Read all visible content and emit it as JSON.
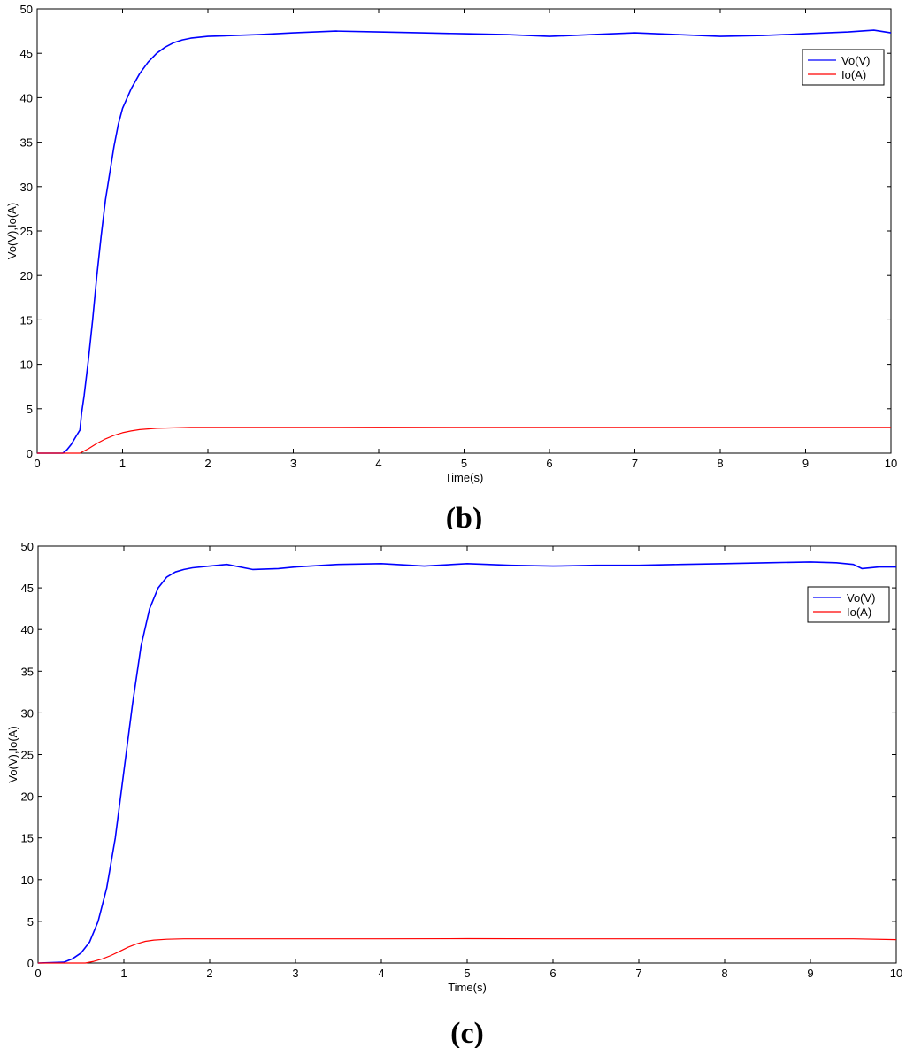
{
  "chart_data": [
    {
      "type": "line",
      "panel_label": "b",
      "xlabel": "Time(s)",
      "ylabel": "Vo(V),Io(A)",
      "xlim": [
        0,
        10
      ],
      "ylim": [
        0,
        50
      ],
      "xticks": [
        0,
        1,
        2,
        3,
        4,
        5,
        6,
        7,
        8,
        9,
        10
      ],
      "yticks": [
        0,
        5,
        10,
        15,
        20,
        25,
        30,
        35,
        40,
        45,
        50
      ],
      "grid": false,
      "legend": "top-right",
      "series": [
        {
          "name": "Vo(V)",
          "color": "#0000ff",
          "x": [
            0,
            0.3,
            0.35,
            0.4,
            0.45,
            0.5,
            0.52,
            0.55,
            0.6,
            0.65,
            0.7,
            0.75,
            0.8,
            0.85,
            0.9,
            0.95,
            1.0,
            1.1,
            1.2,
            1.3,
            1.4,
            1.5,
            1.6,
            1.7,
            1.8,
            1.9,
            2.0,
            2.3,
            2.6,
            3.0,
            3.5,
            4.0,
            4.5,
            5.0,
            5.5,
            6.0,
            6.5,
            7.0,
            7.5,
            8.0,
            8.5,
            9.0,
            9.5,
            9.8,
            10.0
          ],
          "values": [
            0,
            0,
            0.4,
            1.0,
            1.8,
            2.6,
            4.5,
            6.5,
            10.5,
            15.0,
            20.0,
            24.5,
            28.5,
            31.5,
            34.5,
            37.0,
            38.8,
            41.0,
            42.7,
            44.0,
            45.0,
            45.7,
            46.2,
            46.5,
            46.7,
            46.8,
            46.9,
            47.0,
            47.1,
            47.3,
            47.5,
            47.4,
            47.3,
            47.2,
            47.1,
            46.9,
            47.1,
            47.3,
            47.1,
            46.9,
            47.0,
            47.2,
            47.4,
            47.6,
            47.3
          ]
        },
        {
          "name": "Io(A)",
          "color": "#ff0000",
          "x": [
            0,
            0.5,
            0.6,
            0.7,
            0.8,
            0.9,
            1.0,
            1.1,
            1.2,
            1.4,
            1.6,
            1.8,
            2.0,
            3.0,
            4.0,
            5.0,
            6.0,
            7.0,
            8.0,
            9.0,
            10.0
          ],
          "values": [
            0,
            0,
            0.5,
            1.1,
            1.6,
            2.0,
            2.3,
            2.5,
            2.65,
            2.8,
            2.85,
            2.9,
            2.9,
            2.9,
            2.92,
            2.9,
            2.9,
            2.9,
            2.9,
            2.9,
            2.9
          ]
        }
      ]
    },
    {
      "type": "line",
      "panel_label": "c",
      "xlabel": "Time(s)",
      "ylabel": "Vo(V),Io(A)",
      "xlim": [
        0,
        10
      ],
      "ylim": [
        0,
        50
      ],
      "xticks": [
        0,
        1,
        2,
        3,
        4,
        5,
        6,
        7,
        8,
        9,
        10
      ],
      "yticks": [
        0,
        5,
        10,
        15,
        20,
        25,
        30,
        35,
        40,
        45,
        50
      ],
      "grid": false,
      "legend": "top-right",
      "series": [
        {
          "name": "Vo(V)",
          "color": "#0000ff",
          "x": [
            0,
            0.3,
            0.4,
            0.5,
            0.6,
            0.7,
            0.8,
            0.9,
            1.0,
            1.1,
            1.2,
            1.3,
            1.4,
            1.5,
            1.6,
            1.7,
            1.8,
            2.0,
            2.2,
            2.5,
            2.8,
            3.0,
            3.5,
            4.0,
            4.5,
            5.0,
            5.5,
            6.0,
            6.5,
            7.0,
            7.5,
            8.0,
            8.5,
            9.0,
            9.3,
            9.5,
            9.6,
            9.8,
            10.0
          ],
          "values": [
            0,
            0.1,
            0.5,
            1.2,
            2.5,
            5.0,
            9.0,
            15.0,
            23.0,
            31.0,
            38.0,
            42.5,
            45.0,
            46.3,
            46.9,
            47.2,
            47.4,
            47.6,
            47.8,
            47.2,
            47.3,
            47.5,
            47.8,
            47.9,
            47.6,
            47.9,
            47.7,
            47.6,
            47.7,
            47.7,
            47.8,
            47.9,
            48.0,
            48.1,
            48.0,
            47.8,
            47.3,
            47.5,
            47.5
          ]
        },
        {
          "name": "Io(A)",
          "color": "#ff0000",
          "x": [
            0,
            0.55,
            0.65,
            0.75,
            0.85,
            0.95,
            1.05,
            1.15,
            1.25,
            1.35,
            1.5,
            1.7,
            2.0,
            3.0,
            4.0,
            5.0,
            6.0,
            7.0,
            8.0,
            9.0,
            9.5,
            10.0
          ],
          "values": [
            0,
            0,
            0.2,
            0.5,
            0.9,
            1.4,
            1.9,
            2.3,
            2.6,
            2.75,
            2.85,
            2.9,
            2.9,
            2.9,
            2.9,
            2.92,
            2.9,
            2.9,
            2.9,
            2.9,
            2.9,
            2.8
          ]
        }
      ]
    }
  ]
}
